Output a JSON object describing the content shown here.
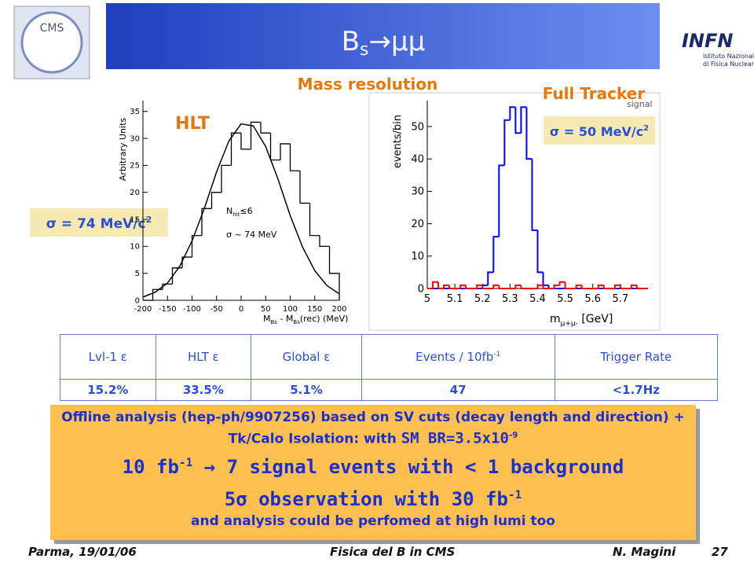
{
  "header": {
    "title": [
      "B",
      "s",
      "→μμ"
    ],
    "logo_left": "CMS",
    "logo_right": "INFN",
    "logo_right_sub": [
      "Istituto Nazionale",
      "di Fisica Nucleare"
    ]
  },
  "labels": {
    "mass_resolution": "Mass resolution",
    "full_tracker": "Full Tracker",
    "hlt": "HLT",
    "sigma_hlt": [
      "σ = 74 MeV/c",
      "2"
    ],
    "sigma_ft": [
      "σ = 50 MeV/c",
      "2"
    ]
  },
  "chart_data": [
    {
      "type": "histogram",
      "y_label": "Arbitrary Units",
      "x_label": [
        "M",
        "Bs",
        " - M",
        "Bs",
        "(rec) (MeV)"
      ],
      "bins": [
        -200,
        -180,
        -160,
        -140,
        -120,
        -100,
        -80,
        -60,
        -40,
        -20,
        0,
        20,
        40,
        60,
        80,
        100,
        120,
        140,
        160,
        180,
        200
      ],
      "values": [
        0,
        2,
        3,
        6,
        8,
        12,
        17,
        20,
        25,
        31,
        28,
        33,
        31,
        26,
        29,
        24,
        18,
        12,
        10,
        5
      ],
      "color": "#000000",
      "fit": {
        "x": [
          -200,
          -175,
          -150,
          -125,
          -100,
          -75,
          -50,
          -25,
          0,
          25,
          50,
          75,
          100,
          125,
          150,
          175,
          200
        ],
        "values": [
          0.6,
          1.5,
          3.2,
          6.3,
          11,
          17,
          23.8,
          29.5,
          32.7,
          32.3,
          28.5,
          22.5,
          15.7,
          9.9,
          5.5,
          2.7,
          1.2
        ]
      },
      "annotations": [
        [
          "N",
          "hit",
          "≤6"
        ],
        [
          "σ ~ 74 MeV"
        ]
      ],
      "xlim": [
        -200,
        200
      ],
      "xticks": [
        -200,
        -150,
        -100,
        -50,
        0,
        50,
        100,
        150,
        200
      ],
      "ylim": [
        0,
        37
      ],
      "yticks": [
        0,
        5,
        10,
        15,
        20,
        25,
        30,
        35
      ]
    },
    {
      "type": "histogram",
      "y_label": "events/bin",
      "x_label": [
        "m",
        "μ+μ-",
        " [GeV]"
      ],
      "bins": [
        5.0,
        5.02,
        5.04,
        5.06,
        5.08,
        5.1,
        5.12,
        5.14,
        5.16,
        5.18,
        5.2,
        5.22,
        5.24,
        5.26,
        5.28,
        5.3,
        5.32,
        5.34,
        5.36,
        5.38,
        5.4,
        5.42,
        5.44,
        5.46,
        5.48,
        5.5,
        5.52,
        5.54,
        5.56,
        5.58,
        5.6,
        5.62,
        5.64,
        5.66,
        5.68,
        5.7,
        5.72,
        5.74,
        5.76,
        5.78,
        5.8
      ],
      "series": [
        {
          "name": "signal",
          "color": "#0000ff",
          "values": [
            0,
            0,
            0,
            0,
            0,
            0,
            0,
            0,
            0,
            0,
            1,
            5,
            16,
            38,
            52,
            56,
            48,
            56,
            40,
            18,
            5,
            1,
            0,
            0,
            0,
            0,
            0,
            0,
            0,
            0,
            0,
            0,
            0,
            0,
            0,
            0,
            0,
            0,
            0,
            0
          ]
        },
        {
          "color": "#ff0000",
          "values": [
            0,
            2,
            0,
            1,
            0,
            0,
            1,
            0,
            0,
            1,
            0,
            0,
            1,
            0,
            0,
            0,
            1,
            0,
            0,
            0,
            1,
            0,
            0,
            1,
            2,
            0,
            0,
            1,
            0,
            0,
            0,
            1,
            0,
            0,
            1,
            0,
            0,
            1,
            0,
            0
          ]
        }
      ],
      "xlim": [
        5,
        5.8
      ],
      "xticks": [
        5,
        5.1,
        5.2,
        5.3,
        5.4,
        5.5,
        5.6,
        5.7
      ],
      "ylim": [
        0,
        58
      ],
      "yticks": [
        0,
        10,
        20,
        30,
        40,
        50
      ]
    }
  ],
  "table": {
    "header": [
      [
        "Lvl-1 ε"
      ],
      [
        "HLT ε"
      ],
      [
        "Global ε"
      ],
      [
        "Events / 10fb",
        "-1"
      ],
      [
        "Trigger Rate"
      ]
    ],
    "rows": [
      [
        "15.2%",
        "33.5%",
        "5.1%",
        "47",
        "<1.7Hz"
      ]
    ]
  },
  "summary": {
    "line1": [
      "Offline analysis (hep-ph/9907256) based on SV cuts (decay length and direction) + Tk/Calo Isolation: with ",
      "SM BR=3.5x10",
      "-9"
    ],
    "line2": [
      "10 fb",
      "-1",
      " → 7 signal events with < 1 background"
    ],
    "line3": [
      "5σ observation with 30 fb",
      "-1"
    ],
    "line4": "and analysis could be perfomed at high lumi too"
  },
  "footer": {
    "place_date": "Parma, 19/01/06",
    "talk": "Fisica del B in CMS",
    "author": "N. Magini",
    "page": "27"
  }
}
